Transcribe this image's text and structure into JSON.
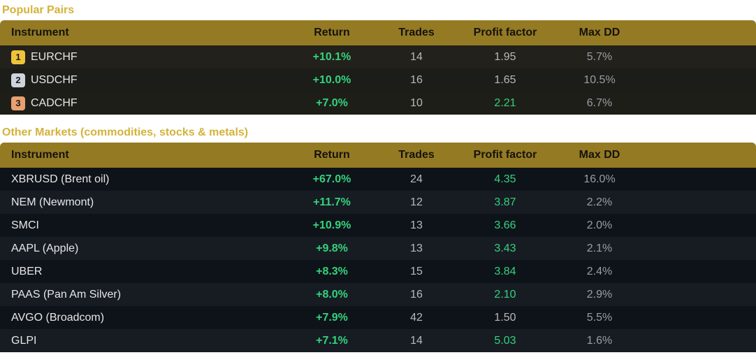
{
  "sections": [
    {
      "title": "Popular Pairs",
      "headers": {
        "instrument": "Instrument",
        "return": "Return",
        "trades": "Trades",
        "profit_factor": "Profit factor",
        "max_dd": "Max DD"
      },
      "rows": [
        {
          "rank": "1",
          "instrument": "EURCHF",
          "return": "+10.1%",
          "trades": "14",
          "profit_factor": "1.95",
          "max_dd": "5.7%"
        },
        {
          "rank": "2",
          "instrument": "USDCHF",
          "return": "+10.0%",
          "trades": "16",
          "profit_factor": "1.65",
          "max_dd": "10.5%"
        },
        {
          "rank": "3",
          "instrument": "CADCHF",
          "return": "+7.0%",
          "trades": "10",
          "profit_factor": "2.21",
          "max_dd": "6.7%"
        }
      ]
    },
    {
      "title": "Other Markets (commodities, stocks & metals)",
      "headers": {
        "instrument": "Instrument",
        "return": "Return",
        "trades": "Trades",
        "profit_factor": "Profit factor",
        "max_dd": "Max DD"
      },
      "rows": [
        {
          "instrument": "XBRUSD (Brent oil)",
          "return": "+67.0%",
          "trades": "24",
          "profit_factor": "4.35",
          "max_dd": "16.0%"
        },
        {
          "instrument": "NEM (Newmont)",
          "return": "+11.7%",
          "trades": "12",
          "profit_factor": "3.87",
          "max_dd": "2.2%"
        },
        {
          "instrument": "SMCI",
          "return": "+10.9%",
          "trades": "13",
          "profit_factor": "3.66",
          "max_dd": "2.0%"
        },
        {
          "instrument": "AAPL (Apple)",
          "return": "+9.8%",
          "trades": "13",
          "profit_factor": "3.43",
          "max_dd": "2.1%"
        },
        {
          "instrument": "UBER",
          "return": "+8.3%",
          "trades": "15",
          "profit_factor": "3.84",
          "max_dd": "2.4%"
        },
        {
          "instrument": "PAAS (Pan Am Silver)",
          "return": "+8.0%",
          "trades": "16",
          "profit_factor": "2.10",
          "max_dd": "2.9%"
        },
        {
          "instrument": "AVGO (Broadcom)",
          "return": "+7.9%",
          "trades": "42",
          "profit_factor": "1.50",
          "max_dd": "5.5%"
        },
        {
          "instrument": "GLPI",
          "return": "+7.1%",
          "trades": "14",
          "profit_factor": "5.03",
          "max_dd": "1.6%"
        }
      ]
    }
  ],
  "colors": {
    "accent": "#d4b33a",
    "header_bg": "#957a24",
    "positive": "#34d27c"
  }
}
